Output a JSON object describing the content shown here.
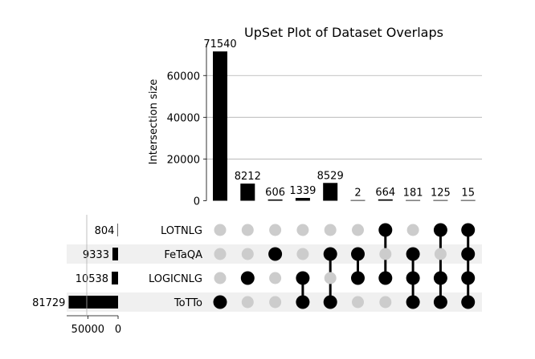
{
  "chart_data": {
    "type": "bar",
    "title": "UpSet Plot of Dataset Overlaps",
    "ylabel": "Intersection size",
    "ylim": [
      0,
      72000
    ],
    "yticks": [
      0,
      20000,
      40000,
      60000
    ],
    "grid": true,
    "sets": [
      "LOTNLG",
      "FeTaQA",
      "LOGICNLG",
      "ToTTo"
    ],
    "set_sizes": [
      804,
      9333,
      10538,
      81729
    ],
    "set_size_ticks": [
      50000,
      0
    ],
    "set_size_xlim": [
      0,
      85000
    ],
    "intersections": [
      {
        "value": 71540,
        "members": [
          false,
          false,
          false,
          true
        ]
      },
      {
        "value": 8212,
        "members": [
          false,
          false,
          true,
          false
        ]
      },
      {
        "value": 606,
        "members": [
          false,
          true,
          false,
          false
        ]
      },
      {
        "value": 1339,
        "members": [
          false,
          false,
          true,
          true
        ]
      },
      {
        "value": 8529,
        "members": [
          false,
          true,
          false,
          true
        ]
      },
      {
        "value": 2,
        "members": [
          false,
          true,
          true,
          false
        ]
      },
      {
        "value": 664,
        "members": [
          true,
          false,
          true,
          false
        ]
      },
      {
        "value": 181,
        "members": [
          false,
          true,
          true,
          true
        ]
      },
      {
        "value": 125,
        "members": [
          true,
          false,
          true,
          true
        ]
      },
      {
        "value": 15,
        "members": [
          true,
          true,
          true,
          true
        ]
      }
    ],
    "colors": {
      "bar": "#000000",
      "dot_active": "#000000",
      "dot_inactive": "#cccccc",
      "stripe": "#f0f0f0",
      "grid": "#b0b0b0"
    }
  }
}
